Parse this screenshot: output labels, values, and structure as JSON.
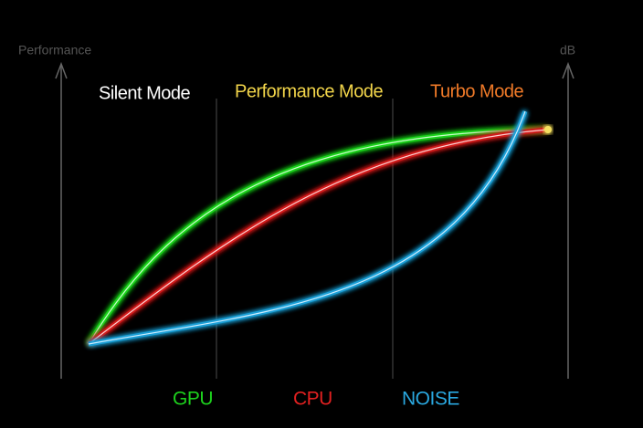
{
  "axis_labels": {
    "left": "Performance",
    "right": "dB"
  },
  "modes": [
    "Silent Mode",
    "Performance Mode",
    "Turbo Mode"
  ],
  "legend": [
    "GPU",
    "CPU",
    "NOISE"
  ]
}
